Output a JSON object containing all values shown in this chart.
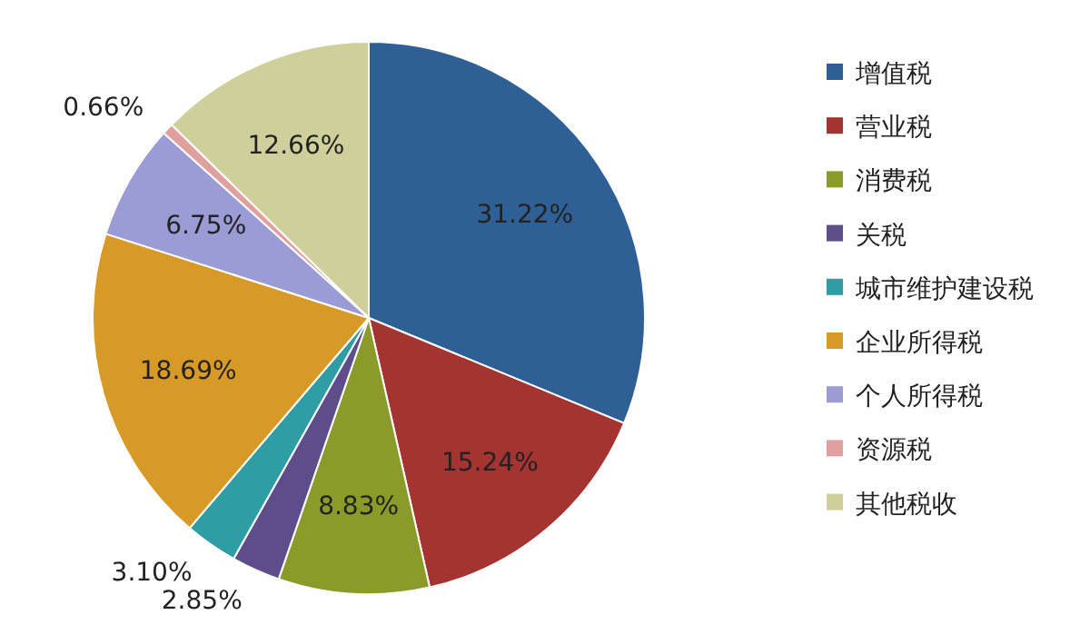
{
  "chart_data": {
    "type": "pie",
    "categories": [
      "增值税",
      "营业税",
      "消费税",
      "关税",
      "城市维护建设税",
      "企业所得税",
      "个人所得税",
      "资源税",
      "其他税收"
    ],
    "values": [
      31.22,
      15.24,
      8.83,
      2.85,
      3.1,
      18.69,
      6.75,
      0.66,
      12.66
    ],
    "colors": [
      "#2e5f95",
      "#a33431",
      "#8c9a2a",
      "#5e4d8a",
      "#2e9ea4",
      "#d89a27",
      "#9b9bd6",
      "#e0a0a0",
      "#cfcf9b"
    ],
    "value_labels": [
      "31.22%",
      "15.24%",
      "8.83%",
      "2.85%",
      "3.10%",
      "18.69%",
      "6.75%",
      "0.66%",
      "12.66%"
    ],
    "legend": "right"
  }
}
